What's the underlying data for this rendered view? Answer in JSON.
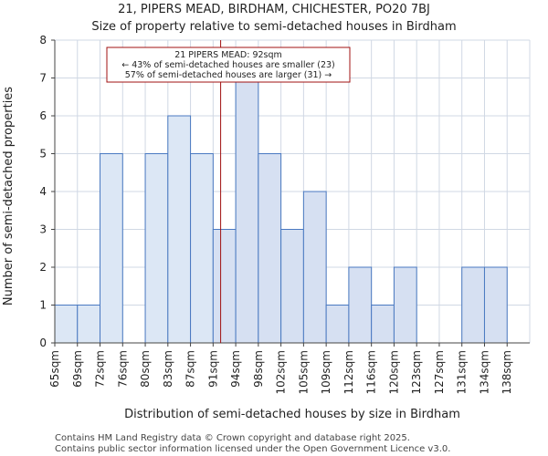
{
  "title": "21, PIPERS MEAD, BIRDHAM, CHICHESTER, PO20 7BJ",
  "subtitle": "Size of property relative to semi-detached houses in Birdham",
  "footer": {
    "line1": "Contains HM Land Registry data © Crown copyright and database right 2025.",
    "line2": "Contains public sector information licensed under the Open Government Licence v3.0."
  },
  "chart_data": {
    "type": "bar",
    "title": "21, PIPERS MEAD, BIRDHAM, CHICHESTER, PO20 7BJ",
    "subtitle": "Size of property relative to semi-detached houses in Birdham",
    "xlabel": "Distribution of semi-detached houses by size in Birdham",
    "ylabel": "Number of semi-detached properties",
    "categories": [
      "65sqm",
      "69sqm",
      "72sqm",
      "76sqm",
      "80sqm",
      "83sqm",
      "87sqm",
      "91sqm",
      "94sqm",
      "98sqm",
      "102sqm",
      "105sqm",
      "109sqm",
      "112sqm",
      "116sqm",
      "120sqm",
      "123sqm",
      "127sqm",
      "131sqm",
      "134sqm",
      "138sqm"
    ],
    "values": [
      1,
      1,
      5,
      0,
      5,
      6,
      5,
      3,
      7,
      5,
      3,
      4,
      1,
      2,
      1,
      2,
      0,
      0,
      2,
      2,
      0
    ],
    "ylim": [
      0,
      8
    ],
    "yticks": [
      "0",
      "1",
      "2",
      "3",
      "4",
      "5",
      "6",
      "7",
      "8"
    ],
    "grid": true,
    "bar_fill_before": "#dce7f5",
    "bar_fill_after": "#d6e0f2",
    "bar_edge": "#4a79c1",
    "grid_color": "#d0d8e4",
    "marker": {
      "value_sqm": 92,
      "color": "#a01010"
    },
    "annotation": {
      "line1": "21 PIPERS MEAD: 92sqm",
      "line2": "← 43% of semi-detached houses are smaller (23)",
      "line3": "57% of semi-detached houses are larger (31) →"
    }
  }
}
